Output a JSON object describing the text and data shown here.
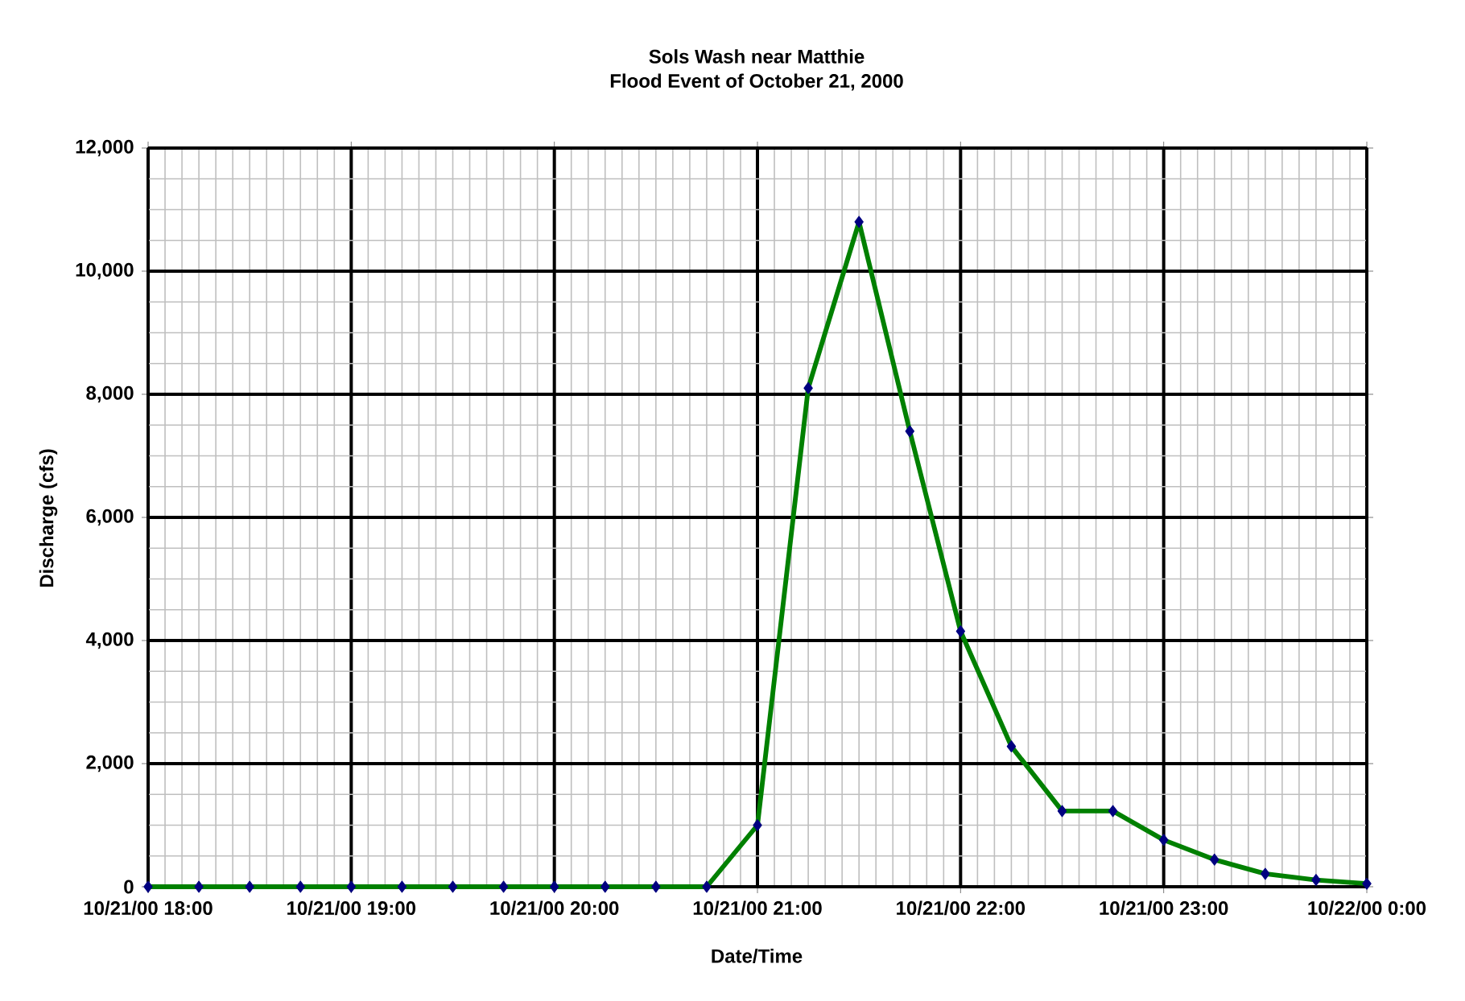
{
  "chart_data": {
    "type": "line",
    "title": "Sols Wash near Matthie",
    "subtitle": "Flood Event of October 21, 2000",
    "xlabel": "Date/Time",
    "ylabel": "Discharge (cfs)",
    "categories": [
      "10/21/00 18:00",
      null,
      null,
      null,
      "10/21/00 19:00",
      null,
      null,
      null,
      "10/21/00 20:00",
      null,
      null,
      null,
      "10/21/00 21:00",
      null,
      null,
      null,
      "10/21/00 22:00",
      null,
      null,
      null,
      "10/21/00 23:00",
      null,
      null,
      null,
      "10/22/00 0:00"
    ],
    "series": [
      {
        "color": "#008000",
        "values": [
          0,
          0,
          0,
          0,
          0,
          0,
          0,
          0,
          0,
          0,
          0,
          0,
          1000,
          8100,
          10800,
          7400,
          4150,
          2280,
          1230,
          1230,
          760,
          440,
          210,
          110,
          50
        ]
      }
    ],
    "ylim": [
      0,
      12000
    ],
    "yticks": [
      0,
      {
        "value": 2000,
        "label": "2,000"
      },
      {
        "value": 4000,
        "label": "4,000"
      },
      {
        "value": 6000,
        "label": "6,000"
      },
      {
        "value": 8000,
        "label": "8,000"
      },
      {
        "value": 10000,
        "label": "10,000"
      },
      {
        "value": 12000,
        "label": "12,000"
      }
    ],
    "grid": true,
    "marker": "diamond",
    "line_style": "solid"
  }
}
